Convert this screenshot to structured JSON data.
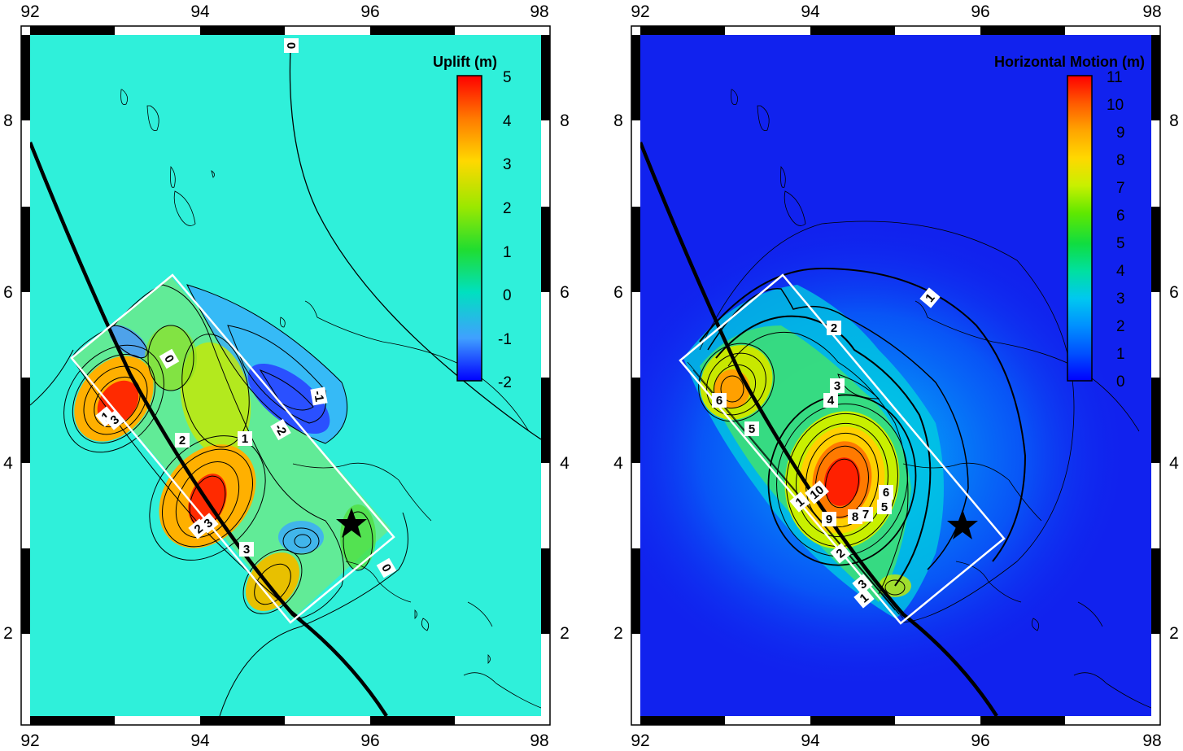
{
  "panels": [
    {
      "id": "uplift",
      "colorbar": {
        "title": "Uplift (m)",
        "ticks": [
          "5",
          "4",
          "3",
          "2",
          "1",
          "0",
          "-1",
          "-2"
        ],
        "colors": [
          "#ff0000",
          "#ff7a00",
          "#ffd800",
          "#9be800",
          "#20dd30",
          "#00e0c0",
          "#40a0ff",
          "#0000ff"
        ]
      },
      "contour_labels": [
        "0",
        "0",
        "1",
        "1",
        "2",
        "2",
        "3",
        "3",
        "3",
        "-1",
        "-2",
        "0"
      ],
      "background": "#2ff0da"
    },
    {
      "id": "horizontal",
      "colorbar": {
        "title": "Horizontal Motion (m)",
        "ticks": [
          "11",
          "10",
          "9",
          "8",
          "7",
          "6",
          "5",
          "4",
          "3",
          "2",
          "1",
          "0"
        ],
        "colors": [
          "#ff0000",
          "#ff5a00",
          "#ffa500",
          "#ffd800",
          "#c8f000",
          "#60e800",
          "#10dd40",
          "#00e0a0",
          "#00c8f0",
          "#0090ff",
          "#0050ff",
          "#0000ff"
        ]
      },
      "contour_labels": [
        "1",
        "2",
        "3",
        "4",
        "6",
        "5",
        "10",
        "9",
        "8",
        "7",
        "5",
        "6",
        "1",
        "2",
        "1",
        "3"
      ],
      "background": "#1122ee"
    }
  ],
  "axes": {
    "x_ticks": [
      "92",
      "94",
      "96",
      "98"
    ],
    "y_ticks": [
      "8",
      "6",
      "4",
      "2"
    ]
  }
}
